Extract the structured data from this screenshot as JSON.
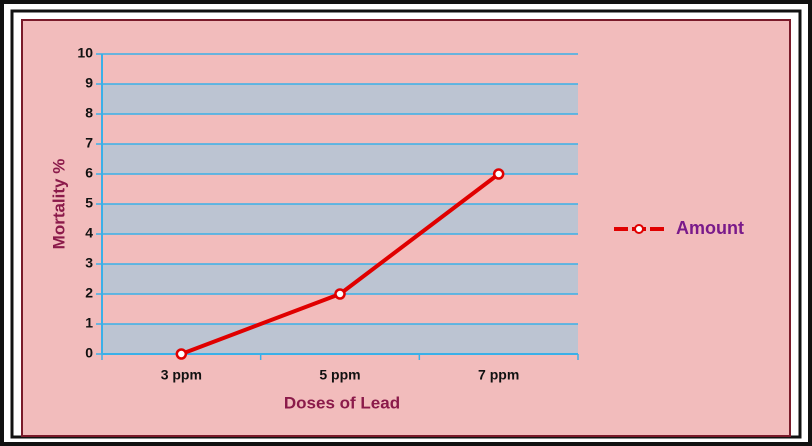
{
  "chart_data": {
    "type": "line",
    "categories": [
      "3 ppm",
      "5 ppm",
      "7 ppm"
    ],
    "series": [
      {
        "name": "Amount",
        "color": "#e00000",
        "values": [
          0,
          2,
          6
        ]
      }
    ],
    "xlabel": "Doses of Lead",
    "ylabel": "Mortality %",
    "ylim": [
      0,
      10
    ],
    "yticks": [
      0,
      1,
      2,
      3,
      4,
      5,
      6,
      7,
      8,
      9,
      10
    ],
    "grid": true,
    "legend": "right"
  }
}
